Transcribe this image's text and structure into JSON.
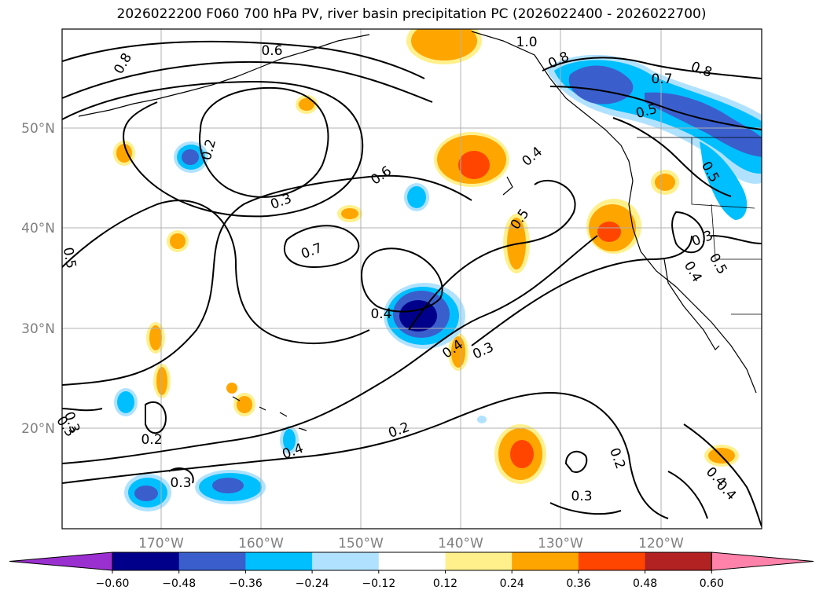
{
  "title": "2026022200 F060 700 hPa PV, river basin precipitation PC (2026022400 - 2026022700)",
  "lat_labels": [
    "50°N",
    "40°N",
    "30°N",
    "20°N"
  ],
  "lon_labels": [
    "170°W",
    "160°W",
    "150°W",
    "140°W",
    "130°W",
    "120°W"
  ],
  "contour_labels": [
    "0.8",
    "0.6",
    "0.2",
    "0.3",
    "0.6",
    "0.7",
    "0.5",
    "0.4",
    "0.5",
    "0.4",
    "0.3",
    "0.2",
    "0.2",
    "0.3",
    "0.3",
    "0.4",
    "0.2",
    "0.3",
    "0.4",
    "1.0",
    "0.8",
    "0.7",
    "0.8",
    "0.5",
    "0.5",
    "0.4",
    "0.3",
    "0.4",
    "0.4",
    "0.3",
    "0.5"
  ],
  "colorbar": {
    "ticks": [
      "−0.60",
      "−0.48",
      "−0.36",
      "−0.24",
      "−0.12",
      "0.12",
      "0.24",
      "0.36",
      "0.48",
      "0.60"
    ],
    "colors": [
      "#9b30d0",
      "#00008b",
      "#3a5fcd",
      "#00bfff",
      "#b0e2ff",
      "#ffffff",
      "#fff08c",
      "#ffa500",
      "#ff4500",
      "#b22222",
      "#ff82ab"
    ]
  }
}
